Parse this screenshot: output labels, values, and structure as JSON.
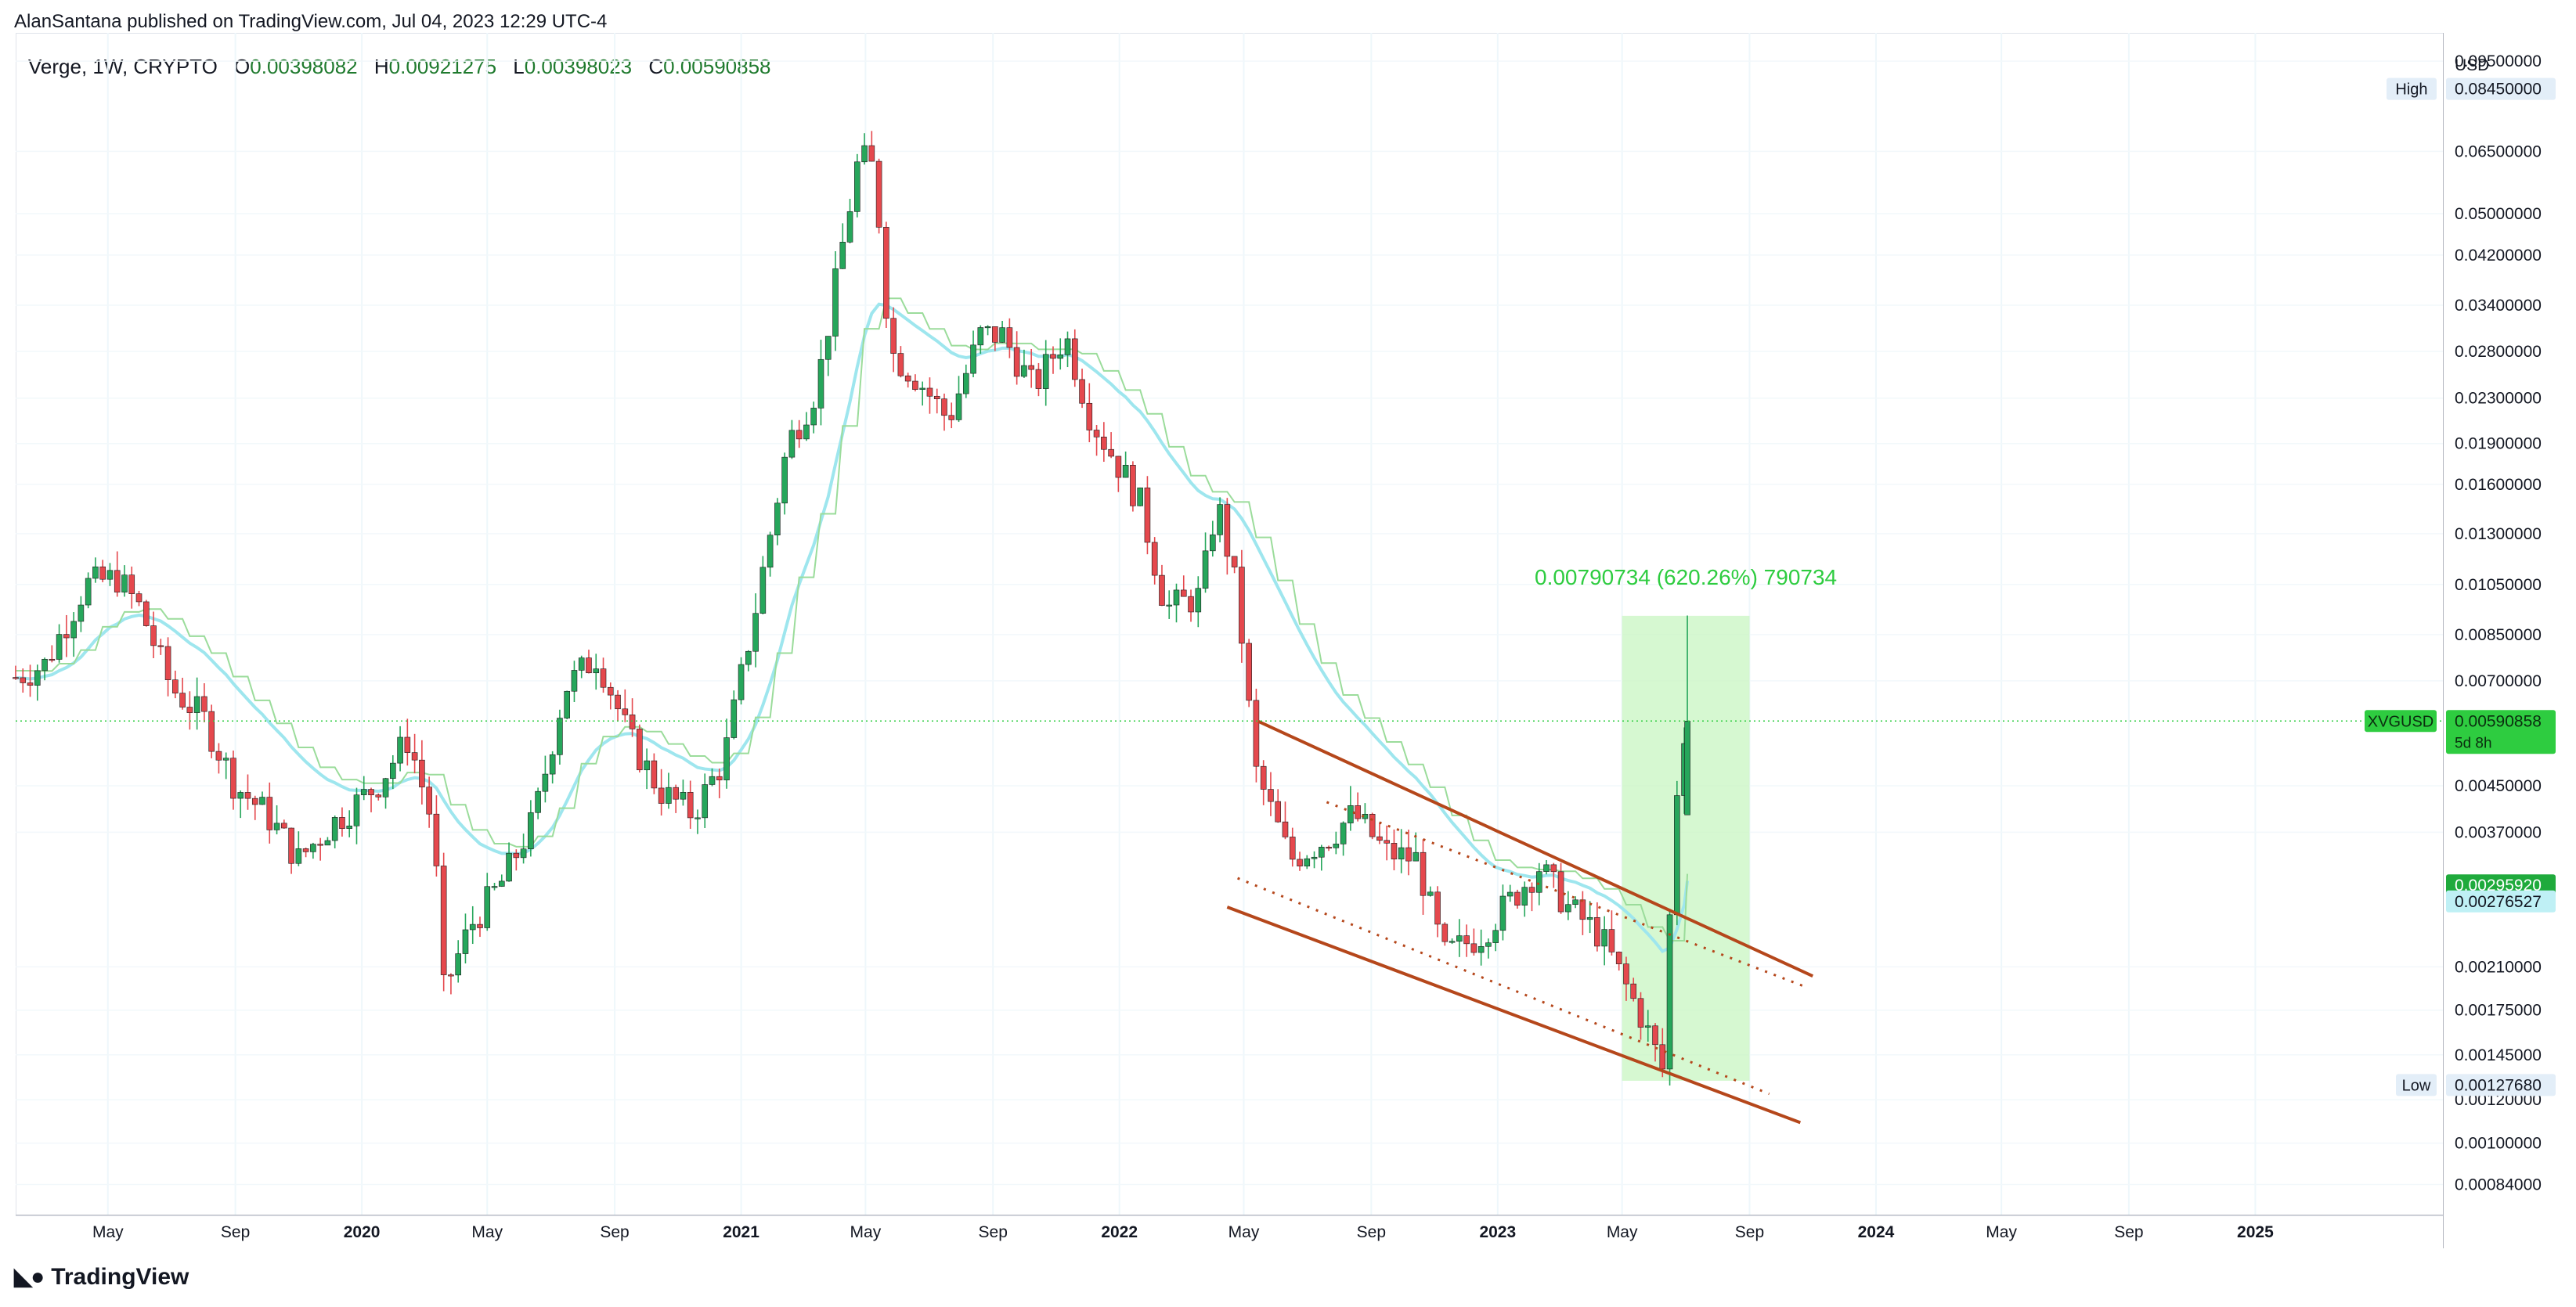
{
  "header": {
    "published": "AlanSantana published on TradingView.com, Jul 04, 2023 12:29 UTC-4"
  },
  "legend": {
    "symbol": "Verge, 1W, CRYPTO",
    "open_label": "O",
    "open": "0.00398082",
    "high_label": "H",
    "high": "0.00921275",
    "low_label": "L",
    "low": "0.00398023",
    "close_label": "C",
    "close": "0.00590858"
  },
  "footer": {
    "brand": "TradingView",
    "logo_icon": "tradingview-logo-icon"
  },
  "colors": {
    "up": "#26a65b",
    "down": "#e5484d",
    "ema": "#9ee6ee",
    "step": "#9bdc9b",
    "channel": "#b5471b",
    "measure_fill": "#c8f5c2",
    "measure_text": "#2ecc40",
    "current": "#2ecc40"
  },
  "chart_data": {
    "type": "candlestick",
    "title": "",
    "log_scale": true,
    "y_unit": "USD",
    "ylim": [
      0.00074,
      0.107
    ],
    "xlim": [
      "2019-02-01",
      "2025-07-01"
    ],
    "x_ticks": [
      {
        "date": "2019-05-01",
        "label": "May",
        "bold": false
      },
      {
        "date": "2019-09-01",
        "label": "Sep",
        "bold": false
      },
      {
        "date": "2020-01-01",
        "label": "2020",
        "bold": true
      },
      {
        "date": "2020-05-01",
        "label": "May",
        "bold": false
      },
      {
        "date": "2020-09-01",
        "label": "Sep",
        "bold": false
      },
      {
        "date": "2021-01-01",
        "label": "2021",
        "bold": true
      },
      {
        "date": "2021-05-01",
        "label": "May",
        "bold": false
      },
      {
        "date": "2021-09-01",
        "label": "Sep",
        "bold": false
      },
      {
        "date": "2022-01-01",
        "label": "2022",
        "bold": true
      },
      {
        "date": "2022-05-01",
        "label": "May",
        "bold": false
      },
      {
        "date": "2022-09-01",
        "label": "Sep",
        "bold": false
      },
      {
        "date": "2023-01-01",
        "label": "2023",
        "bold": true
      },
      {
        "date": "2023-05-01",
        "label": "May",
        "bold": false
      },
      {
        "date": "2023-09-01",
        "label": "Sep",
        "bold": false
      },
      {
        "date": "2024-01-01",
        "label": "2024",
        "bold": true
      },
      {
        "date": "2024-05-01",
        "label": "May",
        "bold": false
      },
      {
        "date": "2024-09-01",
        "label": "Sep",
        "bold": false
      },
      {
        "date": "2025-01-01",
        "label": "2025",
        "bold": true
      }
    ],
    "y_ticks": [
      "0.09500000",
      "0.06500000",
      "0.05000000",
      "0.04200000",
      "0.03400000",
      "0.02800000",
      "0.02300000",
      "0.01900000",
      "0.01600000",
      "0.01300000",
      "0.01050000",
      "0.00850000",
      "0.00700000",
      "0.00450000",
      "0.00370000",
      "0.00210000",
      "0.00175000",
      "0.00145000",
      "0.00120000",
      "0.00100000",
      "0.00084000"
    ],
    "price_labels": {
      "high": {
        "label": "High",
        "value": "0.08450000"
      },
      "current": {
        "label": "XVGUSD",
        "value": "0.00590858",
        "countdown": "5d 8h"
      },
      "green": {
        "value": "0.00295920"
      },
      "ema": {
        "value": "0.00276527"
      },
      "low": {
        "label": "Low",
        "value": "0.00127680"
      }
    },
    "measure": {
      "text": "0.00790734 (620.26%) 790734",
      "start": "2023-05-01",
      "end": "2023-09-01",
      "low": 0.0013,
      "high": 0.0092
    },
    "channel": {
      "upper": [
        [
          "2022-05-15",
          0.0059
        ],
        [
          "2023-11-01",
          0.00202
        ]
      ],
      "lower": [
        [
          "2022-04-15",
          0.0027
        ],
        [
          "2023-10-20",
          0.00109
        ]
      ],
      "upper_dotted": [
        [
          "2022-07-20",
          0.0042
        ],
        [
          "2023-10-25",
          0.00193
        ]
      ],
      "lower_dotted": [
        [
          "2022-04-25",
          0.00305
        ],
        [
          "2023-09-20",
          0.00123
        ]
      ]
    },
    "key_prices": [
      [
        "2019-02-01",
        0.0071
      ],
      [
        "2019-03-01",
        0.0075
      ],
      [
        "2019-04-10",
        0.0105
      ],
      [
        "2019-05-10",
        0.0108
      ],
      [
        "2019-06-01",
        0.0095
      ],
      [
        "2019-07-01",
        0.0068
      ],
      [
        "2019-08-01",
        0.006
      ],
      [
        "2019-09-01",
        0.0045
      ],
      [
        "2019-10-01",
        0.004
      ],
      [
        "2019-11-01",
        0.0033
      ],
      [
        "2019-12-01",
        0.0038
      ],
      [
        "2020-01-15",
        0.0045
      ],
      [
        "2020-02-15",
        0.0055
      ],
      [
        "2020-03-10",
        0.0038
      ],
      [
        "2020-03-20",
        0.0019
      ],
      [
        "2020-04-15",
        0.0025
      ],
      [
        "2020-05-15",
        0.003
      ],
      [
        "2020-06-15",
        0.0039
      ],
      [
        "2020-07-15",
        0.0068
      ],
      [
        "2020-08-15",
        0.0078
      ],
      [
        "2020-09-15",
        0.0055
      ],
      [
        "2020-10-15",
        0.0044
      ],
      [
        "2020-11-15",
        0.004
      ],
      [
        "2020-12-15",
        0.005
      ],
      [
        "2021-01-15",
        0.0095
      ],
      [
        "2021-02-15",
        0.019
      ],
      [
        "2021-03-15",
        0.024
      ],
      [
        "2021-04-10",
        0.045
      ],
      [
        "2021-04-25",
        0.064
      ],
      [
        "2021-05-10",
        0.06
      ],
      [
        "2021-05-25",
        0.028
      ],
      [
        "2021-06-20",
        0.025
      ],
      [
        "2021-07-20",
        0.021
      ],
      [
        "2021-08-20",
        0.03
      ],
      [
        "2021-09-10",
        0.03
      ],
      [
        "2021-10-10",
        0.024
      ],
      [
        "2021-11-10",
        0.03
      ],
      [
        "2021-12-05",
        0.021
      ],
      [
        "2022-01-20",
        0.015
      ],
      [
        "2022-02-15",
        0.0095
      ],
      [
        "2022-03-20",
        0.01
      ],
      [
        "2022-04-05",
        0.015
      ],
      [
        "2022-04-25",
        0.01
      ],
      [
        "2022-05-12",
        0.0048
      ],
      [
        "2022-06-15",
        0.0033
      ],
      [
        "2022-07-20",
        0.0036
      ],
      [
        "2022-08-15",
        0.004
      ],
      [
        "2022-09-15",
        0.0034
      ],
      [
        "2022-10-15",
        0.0033
      ],
      [
        "2022-11-10",
        0.0022
      ],
      [
        "2022-12-15",
        0.0024
      ],
      [
        "2023-01-15",
        0.0028
      ],
      [
        "2023-02-10",
        0.0032
      ],
      [
        "2023-03-10",
        0.0027
      ],
      [
        "2023-04-10",
        0.0024
      ],
      [
        "2023-05-01",
        0.002
      ],
      [
        "2023-05-20",
        0.0017
      ],
      [
        "2023-06-10",
        0.00135
      ],
      [
        "2023-06-20",
        0.004
      ],
      [
        "2023-07-01",
        0.0059
      ]
    ]
  }
}
